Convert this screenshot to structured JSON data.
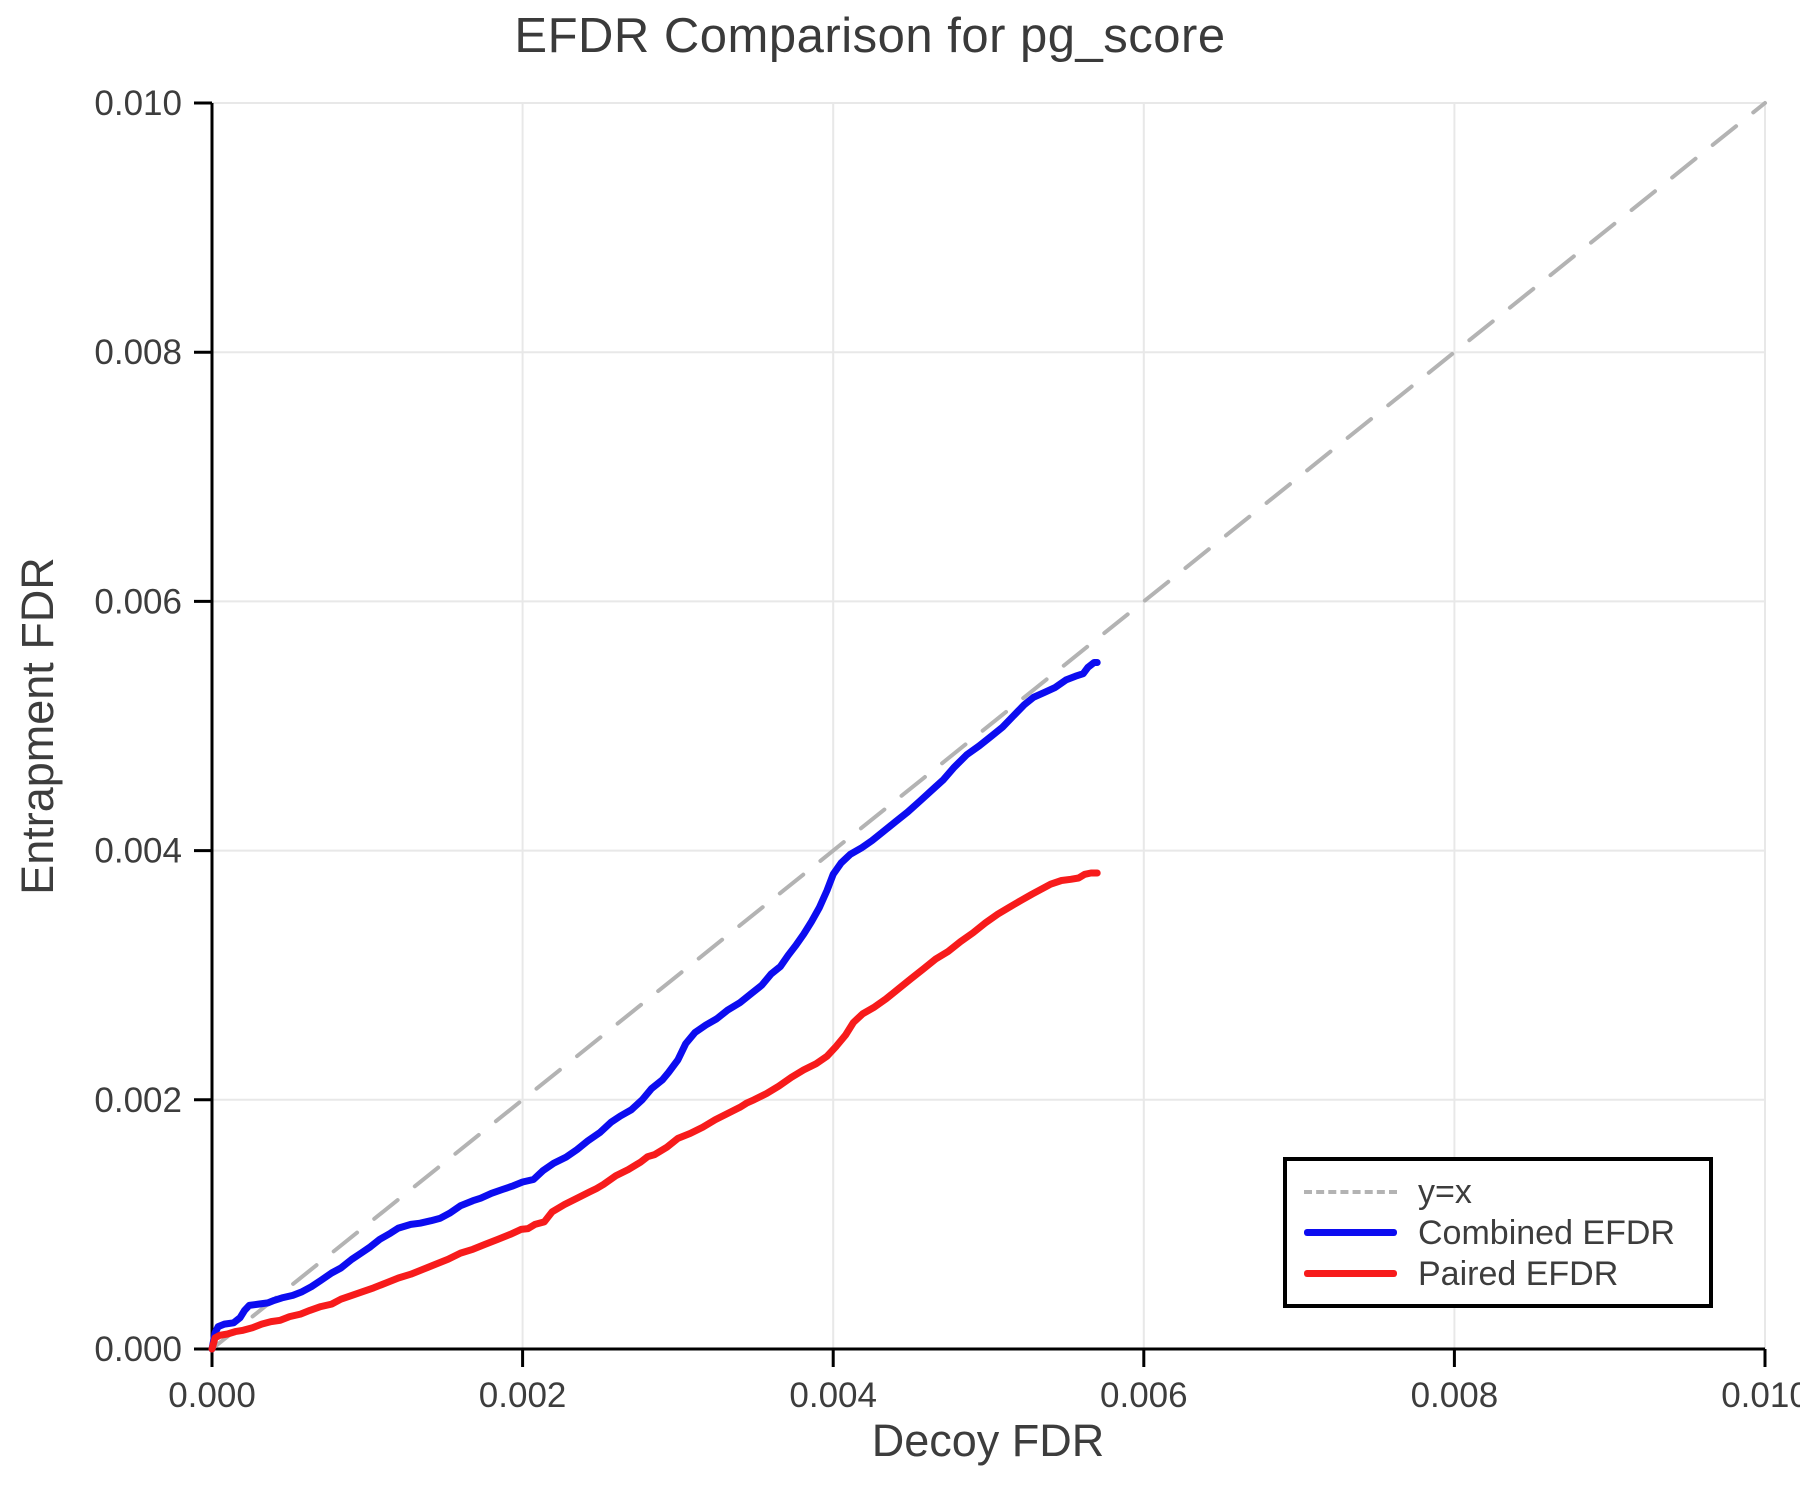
{
  "title": "EFDR Comparison for pg_score",
  "legend": {
    "items": [
      {
        "label": "y=x",
        "style": "dashed",
        "color": "#b3b3b3"
      },
      {
        "label": "Combined EFDR",
        "style": "solid",
        "color": "#0c0cf0"
      },
      {
        "label": "Paired EFDR",
        "style": "solid",
        "color": "#f71b1b"
      }
    ]
  },
  "chart_data": {
    "type": "line",
    "title": "EFDR Comparison for pg_score",
    "xlabel": "Decoy FDR",
    "ylabel": "Entrapment FDR",
    "xlim": [
      0.0,
      0.01
    ],
    "ylim": [
      0.0,
      0.01
    ],
    "xticks": [
      0.0,
      0.002,
      0.004,
      0.006,
      0.008,
      0.01
    ],
    "yticks": [
      0.0,
      0.002,
      0.004,
      0.006,
      0.008,
      0.01
    ],
    "tick_format": "0.000",
    "grid": true,
    "legend_position": "bottom-right",
    "colors": {
      "grid": "#e8e8e8",
      "axis": "#000000",
      "tick_text": "#3d3d3d",
      "title_text": "#3a3a3a"
    },
    "series": [
      {
        "name": "y=x",
        "style": "dashed",
        "color": "#b3b3b3",
        "width": 4,
        "points": [
          [
            0.0,
            0.0
          ],
          [
            0.01,
            0.01
          ]
        ]
      },
      {
        "name": "Combined EFDR",
        "style": "solid",
        "color": "#0c0cf0",
        "width": 7,
        "points": [
          [
            0.0,
            0.0
          ],
          [
            2e-05,
            0.00013
          ],
          [
            4e-05,
            0.00018
          ],
          [
            8e-05,
            0.0002
          ],
          [
            0.00014,
            0.00021
          ],
          [
            0.00018,
            0.00025
          ],
          [
            0.00021,
            0.00031
          ],
          [
            0.00024,
            0.00035
          ],
          [
            0.0003,
            0.00036
          ],
          [
            0.00036,
            0.00037
          ],
          [
            0.0004,
            0.00039
          ],
          [
            0.00045,
            0.00041
          ],
          [
            0.00052,
            0.00043
          ],
          [
            0.00058,
            0.00046
          ],
          [
            0.00064,
            0.0005
          ],
          [
            0.0007,
            0.00055
          ],
          [
            0.00077,
            0.00061
          ],
          [
            0.00083,
            0.00065
          ],
          [
            0.0009,
            0.00072
          ],
          [
            0.00096,
            0.00077
          ],
          [
            0.00102,
            0.00082
          ],
          [
            0.00108,
            0.00088
          ],
          [
            0.00115,
            0.00093
          ],
          [
            0.0012,
            0.00097
          ],
          [
            0.00128,
            0.001
          ],
          [
            0.00134,
            0.00101
          ],
          [
            0.00141,
            0.00103
          ],
          [
            0.00147,
            0.00105
          ],
          [
            0.00153,
            0.00109
          ],
          [
            0.0016,
            0.00115
          ],
          [
            0.00168,
            0.00119
          ],
          [
            0.00173,
            0.00121
          ],
          [
            0.0018,
            0.00125
          ],
          [
            0.00187,
            0.00128
          ],
          [
            0.00194,
            0.00131
          ],
          [
            0.002,
            0.00134
          ],
          [
            0.00207,
            0.00136
          ],
          [
            0.00213,
            0.00143
          ],
          [
            0.0022,
            0.00149
          ],
          [
            0.00228,
            0.00154
          ],
          [
            0.00235,
            0.0016
          ],
          [
            0.00242,
            0.00167
          ],
          [
            0.0025,
            0.00174
          ],
          [
            0.00257,
            0.00182
          ],
          [
            0.00263,
            0.00187
          ],
          [
            0.0027,
            0.00192
          ],
          [
            0.00277,
            0.002
          ],
          [
            0.00283,
            0.00209
          ],
          [
            0.0029,
            0.00216
          ],
          [
            0.00294,
            0.00222
          ],
          [
            0.003,
            0.00232
          ],
          [
            0.00305,
            0.00245
          ],
          [
            0.00311,
            0.00254
          ],
          [
            0.00318,
            0.0026
          ],
          [
            0.00325,
            0.00265
          ],
          [
            0.00332,
            0.00272
          ],
          [
            0.0034,
            0.00278
          ],
          [
            0.00347,
            0.00285
          ],
          [
            0.00354,
            0.00292
          ],
          [
            0.0036,
            0.00301
          ],
          [
            0.00366,
            0.00307
          ],
          [
            0.00371,
            0.00316
          ],
          [
            0.00376,
            0.00324
          ],
          [
            0.00381,
            0.00333
          ],
          [
            0.00386,
            0.00343
          ],
          [
            0.00391,
            0.00354
          ],
          [
            0.00396,
            0.00368
          ],
          [
            0.004,
            0.00381
          ],
          [
            0.00405,
            0.0039
          ],
          [
            0.00411,
            0.00397
          ],
          [
            0.00418,
            0.00402
          ],
          [
            0.00425,
            0.00408
          ],
          [
            0.00432,
            0.00415
          ],
          [
            0.0044,
            0.00423
          ],
          [
            0.00448,
            0.00431
          ],
          [
            0.00456,
            0.0044
          ],
          [
            0.00464,
            0.00449
          ],
          [
            0.00471,
            0.00457
          ],
          [
            0.00478,
            0.00467
          ],
          [
            0.00486,
            0.00477
          ],
          [
            0.00494,
            0.00484
          ],
          [
            0.00502,
            0.00492
          ],
          [
            0.00509,
            0.00499
          ],
          [
            0.00516,
            0.00508
          ],
          [
            0.00523,
            0.00517
          ],
          [
            0.00529,
            0.00523
          ],
          [
            0.00536,
            0.00527
          ],
          [
            0.00543,
            0.00531
          ],
          [
            0.0055,
            0.00537
          ],
          [
            0.00556,
            0.0054
          ],
          [
            0.00561,
            0.00542
          ],
          [
            0.00564,
            0.00547
          ],
          [
            0.00568,
            0.00551
          ],
          [
            0.0057,
            0.00551
          ]
        ]
      },
      {
        "name": "Paired EFDR",
        "style": "solid",
        "color": "#f71b1b",
        "width": 7,
        "points": [
          [
            0.0,
            0.0
          ],
          [
            2e-05,
            9e-05
          ],
          [
            5e-05,
            0.00011
          ],
          [
            0.0001,
            0.00012
          ],
          [
            0.00015,
            0.00014
          ],
          [
            0.0002,
            0.00015
          ],
          [
            0.00026,
            0.00017
          ],
          [
            0.00032,
            0.0002
          ],
          [
            0.00038,
            0.00022
          ],
          [
            0.00044,
            0.00023
          ],
          [
            0.0005,
            0.00026
          ],
          [
            0.00057,
            0.00028
          ],
          [
            0.00063,
            0.00031
          ],
          [
            0.0007,
            0.00034
          ],
          [
            0.00077,
            0.00036
          ],
          [
            0.00083,
            0.0004
          ],
          [
            0.0009,
            0.00043
          ],
          [
            0.00097,
            0.00046
          ],
          [
            0.00104,
            0.00049
          ],
          [
            0.00112,
            0.00053
          ],
          [
            0.0012,
            0.00057
          ],
          [
            0.00128,
            0.0006
          ],
          [
            0.00136,
            0.00064
          ],
          [
            0.00144,
            0.00068
          ],
          [
            0.00152,
            0.00072
          ],
          [
            0.0016,
            0.00077
          ],
          [
            0.00168,
            0.0008
          ],
          [
            0.00176,
            0.00084
          ],
          [
            0.00184,
            0.00088
          ],
          [
            0.00192,
            0.00092
          ],
          [
            0.00199,
            0.00096
          ],
          [
            0.00208,
            0.001
          ],
          [
            0.00214,
            0.00102
          ],
          [
            0.00219,
            0.0011
          ],
          [
            0.00227,
            0.00116
          ],
          [
            0.00235,
            0.00121
          ],
          [
            0.00243,
            0.00126
          ],
          [
            0.00252,
            0.00132
          ],
          [
            0.0026,
            0.00139
          ],
          [
            0.00268,
            0.00144
          ],
          [
            0.00276,
            0.0015
          ],
          [
            0.00285,
            0.00156
          ],
          [
            0.00293,
            0.00162
          ],
          [
            0.003,
            0.00169
          ],
          [
            0.00308,
            0.00173
          ],
          [
            0.00316,
            0.00178
          ],
          [
            0.00324,
            0.00184
          ],
          [
            0.00332,
            0.00189
          ],
          [
            0.0034,
            0.00194
          ],
          [
            0.00349,
            0.002
          ],
          [
            0.00357,
            0.00205
          ],
          [
            0.00365,
            0.00211
          ],
          [
            0.00373,
            0.00218
          ],
          [
            0.00381,
            0.00224
          ],
          [
            0.00389,
            0.00229
          ],
          [
            0.00396,
            0.00235
          ],
          [
            0.00402,
            0.00243
          ],
          [
            0.00408,
            0.00252
          ],
          [
            0.00413,
            0.00262
          ],
          [
            0.00419,
            0.00269
          ],
          [
            0.00426,
            0.00274
          ],
          [
            0.00434,
            0.00281
          ],
          [
            0.00442,
            0.00289
          ],
          [
            0.0045,
            0.00297
          ],
          [
            0.00458,
            0.00305
          ],
          [
            0.00466,
            0.00313
          ],
          [
            0.00474,
            0.00319
          ],
          [
            0.00482,
            0.00327
          ],
          [
            0.0049,
            0.00334
          ],
          [
            0.00498,
            0.00342
          ],
          [
            0.00506,
            0.00349
          ],
          [
            0.00514,
            0.00355
          ],
          [
            0.00521,
            0.0036
          ],
          [
            0.00528,
            0.00365
          ],
          [
            0.00534,
            0.00369
          ],
          [
            0.0054,
            0.00373
          ],
          [
            0.00547,
            0.00376
          ],
          [
            0.00553,
            0.00377
          ],
          [
            0.00558,
            0.00378
          ],
          [
            0.00562,
            0.00381
          ],
          [
            0.00566,
            0.00382
          ],
          [
            0.0057,
            0.00382
          ]
        ]
      }
    ]
  }
}
